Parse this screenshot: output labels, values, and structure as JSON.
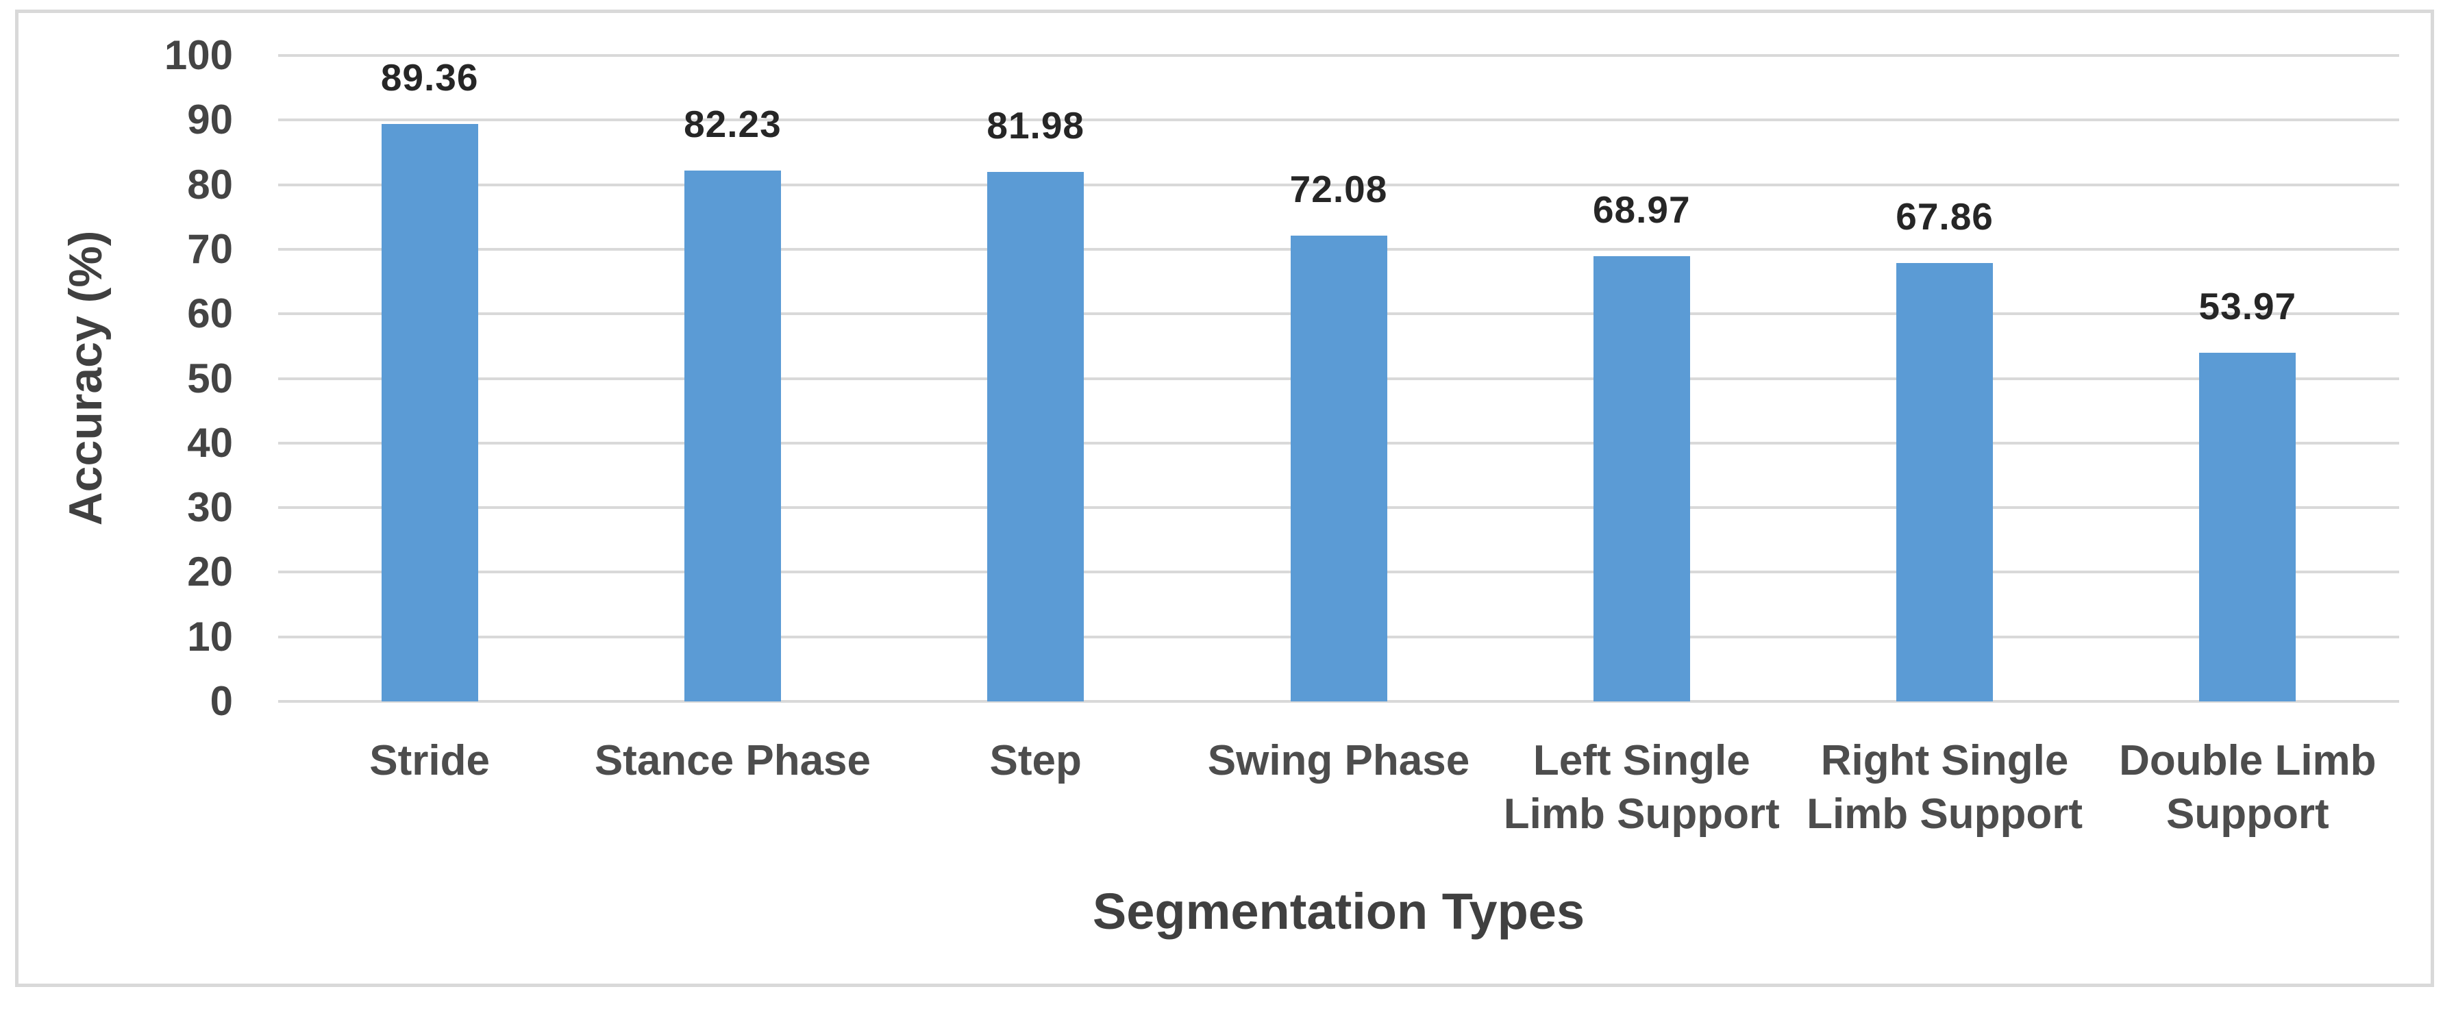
{
  "chart_data": {
    "type": "bar",
    "title": "",
    "categories": [
      "Stride",
      "Stance Phase",
      "Step",
      "Swing Phase",
      "Left Single Limb Support",
      "Right Single Limb Support",
      "Double Limb Support"
    ],
    "category_lines": [
      [
        "Stride"
      ],
      [
        "Stance Phase"
      ],
      [
        "Step"
      ],
      [
        "Swing Phase"
      ],
      [
        "Left Single",
        "Limb Support"
      ],
      [
        "Right Single",
        "Limb Support"
      ],
      [
        "Double Limb",
        "Support"
      ]
    ],
    "values": [
      89.36,
      82.23,
      81.98,
      72.08,
      68.97,
      67.86,
      53.97
    ],
    "value_labels": [
      "89.36",
      "82.23",
      "81.98",
      "72.08",
      "68.97",
      "67.86",
      "53.97"
    ],
    "xlabel": "Segmentation Types",
    "ylabel": "Accuracy (%)",
    "ylim": [
      0,
      100
    ],
    "ytick_step": 10,
    "yticks": [
      "0",
      "10",
      "20",
      "30",
      "40",
      "50",
      "60",
      "70",
      "80",
      "90",
      "100"
    ],
    "grid": true,
    "legend": "none",
    "bar_color": "#5B9BD5",
    "gridline_color": "#D9D9D9",
    "frame_border_color": "#D9D9D9"
  }
}
